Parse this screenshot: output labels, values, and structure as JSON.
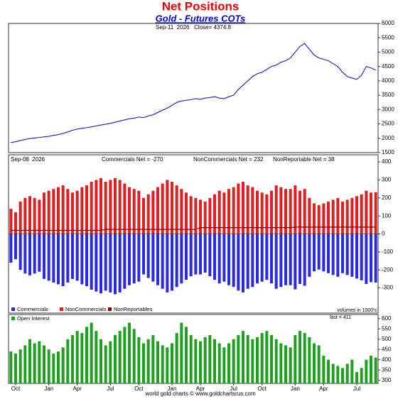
{
  "chart_data": [
    {
      "type": "line",
      "title": "Net Positions",
      "subtitle": "Gold - Futures COTs",
      "annotation": "Sep-11  2026   Close= 4374.8",
      "series": [
        {
          "name": "Gold",
          "color": "#0000dd",
          "values": [
            1850,
            1880,
            1920,
            1960,
            1990,
            2010,
            2030,
            2050,
            2070,
            2100,
            2130,
            2170,
            2220,
            2280,
            2320,
            2350,
            2370,
            2400,
            2430,
            2460,
            2490,
            2520,
            2560,
            2600,
            2640,
            2680,
            2700,
            2740,
            2720,
            2780,
            2820,
            2900,
            2980,
            3050,
            3150,
            3250,
            3300,
            3320,
            3350,
            3380,
            3360,
            3400,
            3420,
            3450,
            3400,
            3380,
            3450,
            3500,
            3700,
            3850,
            4000,
            4150,
            4250,
            4300,
            4400,
            4500,
            4550,
            4650,
            4700,
            4800,
            5000,
            5200,
            5300,
            5100,
            4900,
            4800,
            4750,
            4700,
            4600,
            4500,
            4300,
            4150,
            4100,
            4050,
            4200,
            4500,
            4450,
            4374.8
          ]
        }
      ],
      "ylim": [
        1500,
        6000
      ],
      "yticks": [
        1500,
        2000,
        2500,
        3000,
        3500,
        4000,
        4500,
        5000,
        5500,
        6000
      ],
      "grid": false
    },
    {
      "type": "diverging-bar",
      "annotations": [
        "Sep-08  2026",
        "Commercials Net = -270",
        "NonCommercials Net = 232",
        "NonReportable Net = 38"
      ],
      "note": "volumes in 1000's",
      "series": [
        {
          "name": "Commercials",
          "color": "#2a2ae0",
          "values": [
            -160,
            -140,
            -200,
            -220,
            -230,
            -220,
            -210,
            -250,
            -260,
            -270,
            -280,
            -290,
            -270,
            -250,
            -260,
            -280,
            -290,
            -310,
            -320,
            -330,
            -315,
            -325,
            -335,
            -325,
            -305,
            -285,
            -275,
            -265,
            -225,
            -245,
            -265,
            -285,
            -305,
            -325,
            -315,
            -295,
            -275,
            -255,
            -235,
            -225,
            -225,
            -215,
            -235,
            -255,
            -275,
            -265,
            -285,
            -295,
            -315,
            -325,
            -305,
            -295,
            -275,
            -265,
            -255,
            -275,
            -305,
            -295,
            -285,
            -285,
            -308,
            -278,
            -288,
            -238,
            -208,
            -198,
            -208,
            -218,
            -228,
            -238,
            -218,
            -228,
            -238,
            -248,
            -258,
            -278,
            -268,
            -270
          ]
        },
        {
          "name": "NonCommercials",
          "color": "#e02020",
          "values": [
            140,
            120,
            180,
            200,
            210,
            200,
            190,
            230,
            240,
            250,
            260,
            270,
            250,
            230,
            240,
            260,
            270,
            290,
            300,
            310,
            290,
            300,
            310,
            300,
            280,
            260,
            250,
            240,
            200,
            220,
            240,
            260,
            280,
            300,
            290,
            270,
            250,
            230,
            210,
            200,
            190,
            180,
            200,
            220,
            240,
            230,
            250,
            260,
            280,
            290,
            270,
            260,
            240,
            230,
            220,
            240,
            270,
            260,
            250,
            250,
            270,
            240,
            250,
            200,
            170,
            160,
            170,
            180,
            190,
            200,
            180,
            190,
            200,
            210,
            220,
            240,
            230,
            232
          ]
        },
        {
          "name": "NonReportables",
          "color": "#800000",
          "values": [
            20,
            20,
            20,
            20,
            20,
            20,
            20,
            20,
            20,
            20,
            20,
            20,
            20,
            20,
            20,
            20,
            20,
            20,
            20,
            20,
            25,
            25,
            25,
            25,
            25,
            25,
            25,
            25,
            25,
            25,
            25,
            25,
            25,
            25,
            25,
            25,
            25,
            25,
            25,
            25,
            35,
            35,
            35,
            35,
            35,
            35,
            35,
            35,
            35,
            35,
            35,
            35,
            35,
            35,
            35,
            35,
            35,
            35,
            35,
            35,
            38,
            38,
            38,
            38,
            38,
            38,
            38,
            38,
            38,
            38,
            38,
            38,
            38,
            38,
            38,
            38,
            38,
            38
          ]
        }
      ],
      "ylim": [
        -440,
        440
      ],
      "yticks": [
        -300,
        -200,
        -100,
        0,
        100,
        200,
        300,
        400
      ],
      "grid": false
    },
    {
      "type": "bar",
      "annotation": "last = 411",
      "footer": "world gold charts © www.goldchartsrus.com",
      "categories": [
        null,
        "Oct",
        null,
        null,
        null,
        null,
        null,
        null,
        "Jan",
        null,
        null,
        null,
        null,
        null,
        "Apr",
        null,
        null,
        null,
        null,
        null,
        null,
        "Jul",
        null,
        null,
        null,
        null,
        null,
        "Oct",
        null,
        null,
        null,
        null,
        null,
        null,
        "Jan",
        null,
        null,
        null,
        null,
        null,
        "Apr",
        null,
        null,
        null,
        null,
        null,
        null,
        "Jul",
        null,
        null,
        null,
        null,
        null,
        "Oct",
        null,
        null,
        null,
        null,
        null,
        null,
        "Jan",
        null,
        null,
        null,
        null,
        null,
        "Apr",
        null,
        null,
        null,
        null,
        null,
        null,
        "Jul",
        null,
        null,
        null,
        null
      ],
      "series": [
        {
          "name": "Open Interest",
          "color": "#1fa01f",
          "values": [
            440,
            430,
            450,
            470,
            500,
            480,
            490,
            470,
            450,
            430,
            440,
            460,
            500,
            520,
            540,
            530,
            560,
            580,
            540,
            500,
            470,
            490,
            520,
            540,
            560,
            580,
            550,
            510,
            480,
            500,
            520,
            490,
            470,
            460,
            480,
            530,
            580,
            560,
            520,
            500,
            490,
            510,
            520,
            500,
            480,
            460,
            480,
            500,
            520,
            540,
            520,
            500,
            510,
            530,
            540,
            520,
            500,
            480,
            470,
            460,
            520,
            540,
            530,
            510,
            480,
            470,
            420,
            400,
            380,
            370,
            360,
            380,
            400,
            340,
            360,
            400,
            420,
            411
          ]
        }
      ],
      "ylim": [
        285,
        620
      ],
      "yticks": [
        300,
        350,
        400,
        450,
        500,
        550,
        600
      ],
      "grid": false
    }
  ]
}
